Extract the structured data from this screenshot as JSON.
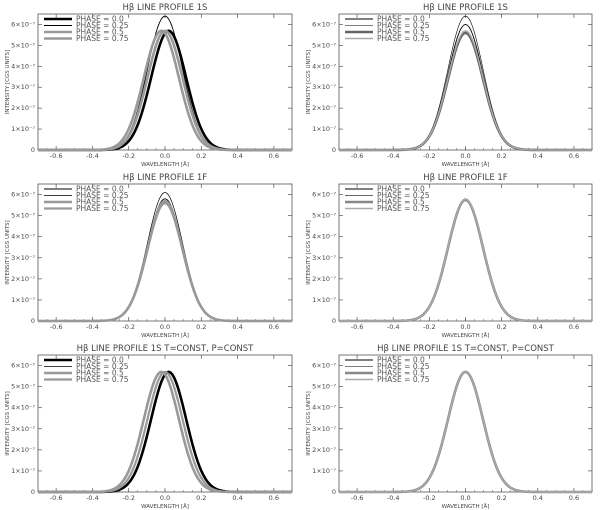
{
  "chart_data": [
    {
      "type": "line",
      "title": "Hβ LINE PROFILE 1S",
      "xlabel": "WAVELENGTH [Å]",
      "ylabel": "INTENSITY [CGS UNITS]",
      "xlim": [
        -0.7,
        0.7
      ],
      "ylim": [
        0,
        6.5e-07
      ],
      "xticks": [
        "-0.6",
        "-0.4",
        "-0.2",
        "0.0",
        "0.2",
        "0.4",
        "0.6"
      ],
      "yticks": [
        "0",
        "1×10⁻⁷",
        "2×10⁻⁷",
        "3×10⁻⁷",
        "4×10⁻⁷",
        "5×10⁻⁷",
        "6×10⁻⁷"
      ],
      "legend_position": "top-left",
      "series": [
        {
          "name": "PHASE = 0.0",
          "peak": 5.7e-07,
          "center": 0.02,
          "width": 0.14,
          "color": "#000000",
          "lw": 2.6
        },
        {
          "name": "PHASE = 0.25",
          "peak": 6.4e-07,
          "center": 0.0,
          "width": 0.14,
          "color": "#000000",
          "lw": 0.9
        },
        {
          "name": "PHASE = 0.5",
          "peak": 5.7e-07,
          "center": -0.02,
          "width": 0.14,
          "color": "#999999",
          "lw": 2.6
        },
        {
          "name": "PHASE = 0.75",
          "peak": 5.7e-07,
          "center": 0.0,
          "width": 0.14,
          "color": "#999999",
          "lw": 2.6
        }
      ]
    },
    {
      "type": "line",
      "title": "Hβ LINE PROFILE 1S",
      "xlabel": "WAVELENGTH [Å]",
      "ylabel": "INTENSITY [CGS UNITS]",
      "xlim": [
        -0.7,
        0.7
      ],
      "ylim": [
        0,
        6.5e-07
      ],
      "xticks": [
        "-0.6",
        "-0.4",
        "-0.2",
        "0.0",
        "0.2",
        "0.4",
        "0.6"
      ],
      "yticks": [
        "0",
        "1×10⁻⁷",
        "2×10⁻⁷",
        "3×10⁻⁷",
        "4×10⁻⁷",
        "5×10⁻⁷",
        "6×10⁻⁷"
      ],
      "legend_position": "top-left",
      "series": [
        {
          "name": "PHASE = 0.0",
          "peak": 6e-07,
          "center": 0.0,
          "width": 0.14,
          "color": "#000000",
          "lw": 0.9
        },
        {
          "name": "PHASE = 0.25",
          "peak": 6.4e-07,
          "center": 0.0,
          "width": 0.14,
          "color": "#000000",
          "lw": 0.6
        },
        {
          "name": "PHASE = 0.5",
          "peak": 5.6e-07,
          "center": 0.0,
          "width": 0.14,
          "color": "#666666",
          "lw": 2.6
        },
        {
          "name": "PHASE = 0.75",
          "peak": 5.7e-07,
          "center": 0.0,
          "width": 0.14,
          "color": "#aaaaaa",
          "lw": 1.4
        }
      ]
    },
    {
      "type": "line",
      "title": "Hβ LINE PROFILE 1F",
      "xlabel": "WAVELENGTH [Å]",
      "ylabel": "INTENSITY [CGS UNITS]",
      "xlim": [
        -0.7,
        0.7
      ],
      "ylim": [
        0,
        6.5e-07
      ],
      "xticks": [
        "-0.6",
        "-0.4",
        "-0.2",
        "0.0",
        "0.2",
        "0.4",
        "0.6"
      ],
      "yticks": [
        "0",
        "1×10⁻⁷",
        "2×10⁻⁷",
        "3×10⁻⁷",
        "4×10⁻⁷",
        "5×10⁻⁷",
        "6×10⁻⁷"
      ],
      "legend_position": "top-left",
      "series": [
        {
          "name": "PHASE = 0.0",
          "peak": 5.8e-07,
          "center": 0.0,
          "width": 0.14,
          "color": "#000000",
          "lw": 0.9
        },
        {
          "name": "PHASE = 0.25",
          "peak": 6.1e-07,
          "center": 0.0,
          "width": 0.14,
          "color": "#000000",
          "lw": 0.7
        },
        {
          "name": "PHASE = 0.5",
          "peak": 5.6e-07,
          "center": 0.0,
          "width": 0.14,
          "color": "#999999",
          "lw": 2.6
        },
        {
          "name": "PHASE = 0.75",
          "peak": 5.7e-07,
          "center": 0.0,
          "width": 0.14,
          "color": "#999999",
          "lw": 2.2
        }
      ]
    },
    {
      "type": "line",
      "title": "Hβ LINE PROFILE 1F",
      "xlabel": "WAVELENGTH [Å]",
      "ylabel": "INTENSITY [CGS UNITS]",
      "xlim": [
        -0.7,
        0.7
      ],
      "ylim": [
        0,
        6.5e-07
      ],
      "xticks": [
        "-0.6",
        "-0.4",
        "-0.2",
        "0.0",
        "0.2",
        "0.4",
        "0.6"
      ],
      "yticks": [
        "0",
        "1×10⁻⁷",
        "2×10⁻⁷",
        "3×10⁻⁷",
        "4×10⁻⁷",
        "5×10⁻⁷",
        "6×10⁻⁷"
      ],
      "legend_position": "top-left",
      "series": [
        {
          "name": "PHASE = 0.0",
          "peak": 5.8e-07,
          "center": 0.0,
          "width": 0.14,
          "color": "#000000",
          "lw": 0.9
        },
        {
          "name": "PHASE = 0.25",
          "peak": 5.8e-07,
          "center": 0.0,
          "width": 0.14,
          "color": "#333333",
          "lw": 0.7
        },
        {
          "name": "PHASE = 0.5",
          "peak": 5.75e-07,
          "center": 0.0,
          "width": 0.14,
          "color": "#888888",
          "lw": 2.6
        },
        {
          "name": "PHASE = 0.75",
          "peak": 5.78e-07,
          "center": 0.0,
          "width": 0.14,
          "color": "#aaaaaa",
          "lw": 1.4
        }
      ]
    },
    {
      "type": "line",
      "title": "Hβ LINE PROFILE 1S T=CONST, P=CONST",
      "xlabel": "WAVELENGTH [Å]",
      "ylabel": "INTENSITY [CGS UNITS]",
      "xlim": [
        -0.7,
        0.7
      ],
      "ylim": [
        0,
        6.5e-07
      ],
      "xticks": [
        "-0.6",
        "-0.4",
        "-0.2",
        "0.0",
        "0.2",
        "0.4",
        "0.6"
      ],
      "yticks": [
        "0",
        "1×10⁻⁷",
        "2×10⁻⁷",
        "3×10⁻⁷",
        "4×10⁻⁷",
        "5×10⁻⁷",
        "6×10⁻⁷"
      ],
      "legend_position": "top-left",
      "series": [
        {
          "name": "PHASE = 0.0",
          "peak": 5.7e-07,
          "center": 0.02,
          "width": 0.14,
          "color": "#000000",
          "lw": 2.6
        },
        {
          "name": "PHASE = 0.25",
          "peak": 5.7e-07,
          "center": 0.0,
          "width": 0.14,
          "color": "#000000",
          "lw": 0.8
        },
        {
          "name": "PHASE = 0.5",
          "peak": 5.7e-07,
          "center": -0.02,
          "width": 0.14,
          "color": "#999999",
          "lw": 2.6
        },
        {
          "name": "PHASE = 0.75",
          "peak": 5.7e-07,
          "center": 0.0,
          "width": 0.14,
          "color": "#999999",
          "lw": 2.2
        }
      ]
    },
    {
      "type": "line",
      "title": "Hβ LINE PROFILE 1S T=CONST, P=CONST",
      "xlabel": "WAVELENGTH [Å]",
      "ylabel": "INTENSITY [CGS UNITS]",
      "xlim": [
        -0.7,
        0.7
      ],
      "ylim": [
        0,
        6.5e-07
      ],
      "xticks": [
        "-0.6",
        "-0.4",
        "-0.2",
        "0.0",
        "0.2",
        "0.4",
        "0.6"
      ],
      "yticks": [
        "0",
        "1×10⁻⁷",
        "2×10⁻⁷",
        "3×10⁻⁷",
        "4×10⁻⁷",
        "5×10⁻⁷",
        "6×10⁻⁷"
      ],
      "legend_position": "top-left",
      "series": [
        {
          "name": "PHASE = 0.0",
          "peak": 5.7e-07,
          "center": 0.0,
          "width": 0.14,
          "color": "#000000",
          "lw": 0.9
        },
        {
          "name": "PHASE = 0.25",
          "peak": 5.7e-07,
          "center": 0.0,
          "width": 0.14,
          "color": "#555555",
          "lw": 0.7
        },
        {
          "name": "PHASE = 0.5",
          "peak": 5.7e-07,
          "center": 0.0,
          "width": 0.14,
          "color": "#888888",
          "lw": 2.6
        },
        {
          "name": "PHASE = 0.75",
          "peak": 5.7e-07,
          "center": 0.0,
          "width": 0.14,
          "color": "#aaaaaa",
          "lw": 1.4
        }
      ]
    }
  ]
}
